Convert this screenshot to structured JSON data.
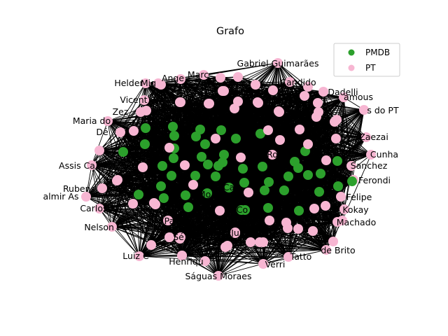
{
  "title": "Grafo",
  "legend": {
    "placement": "top-right",
    "items": [
      {
        "label": "PMDB",
        "color": "#2ca02c"
      },
      {
        "label": "PT",
        "color": "#f7b6d2"
      }
    ]
  },
  "colors": {
    "edge": "#000000",
    "PMDB": "#2ca02c",
    "PT": "#f7b6d2"
  },
  "outer_labels": [
    "Gabriel Guimarães",
    "Marc",
    "Ange",
    "Helder",
    "Mig",
    "Candido",
    "Vicent",
    "Zez",
    "Maria do",
    "Dé",
    "Assis Ca",
    "Rubens",
    "almir As",
    "Carlos Za",
    "Nelson Pe",
    "Luiz C",
    "Henriqu",
    "Ságuas Moraes",
    "Verri",
    "Tatto",
    "de Brito",
    "Machado",
    "Kokay",
    "Felipe",
    "Ferondi",
    "Sanchez",
    "Cunha",
    "Zaezai",
    "s do PT",
    "amous",
    "Dadelli"
  ],
  "inner_labels": [
    "Sé",
    "Ju",
    "Fe",
    "Mo",
    "Ca",
    "Pa",
    "Co",
    "Ro"
  ]
}
